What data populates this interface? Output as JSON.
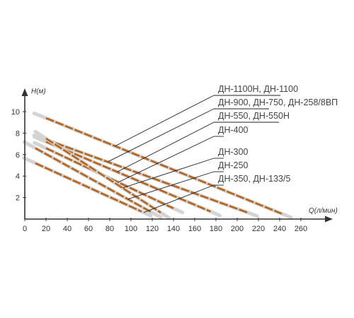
{
  "chart_data": {
    "type": "line",
    "xlabel": "Q(л/мин)",
    "ylabel": "H(м)",
    "xlim": [
      0,
      260
    ],
    "ylim": [
      0,
      10.5
    ],
    "x_ticks": [
      0,
      20,
      40,
      60,
      80,
      100,
      120,
      140,
      160,
      180,
      200,
      220,
      240,
      260
    ],
    "y_ticks": [
      2,
      4,
      6,
      8,
      10
    ],
    "grid": false,
    "series_color": "#b5651d",
    "series": [
      {
        "name": "ДН-1100Н, ДН-1100",
        "x": [
          20,
          242
        ],
        "y": [
          9.4,
          0.5
        ]
      },
      {
        "name": "ДН-900, ДН-750, ДН-258/8ВП",
        "x": [
          20,
          210
        ],
        "y": [
          7.4,
          0.6
        ]
      },
      {
        "name": "ДН-550, ДН-550Н",
        "x": [
          20,
          175
        ],
        "y": [
          7.2,
          0.7
        ]
      },
      {
        "name": "ДН-400",
        "x": [
          20,
          140
        ],
        "y": [
          6.6,
          1.0
        ]
      },
      {
        "name": "ДН-300",
        "x": [
          20,
          128
        ],
        "y": [
          7.5,
          0.6
        ]
      },
      {
        "name": "ДН-250",
        "x": [
          10,
          120
        ],
        "y": [
          6.6,
          0.6
        ]
      },
      {
        "name": "ДН-350, ДН-133/5",
        "x": [
          10,
          110
        ],
        "y": [
          5.2,
          0.7
        ]
      }
    ],
    "legend_placement": "right, with leader lines to curves"
  }
}
